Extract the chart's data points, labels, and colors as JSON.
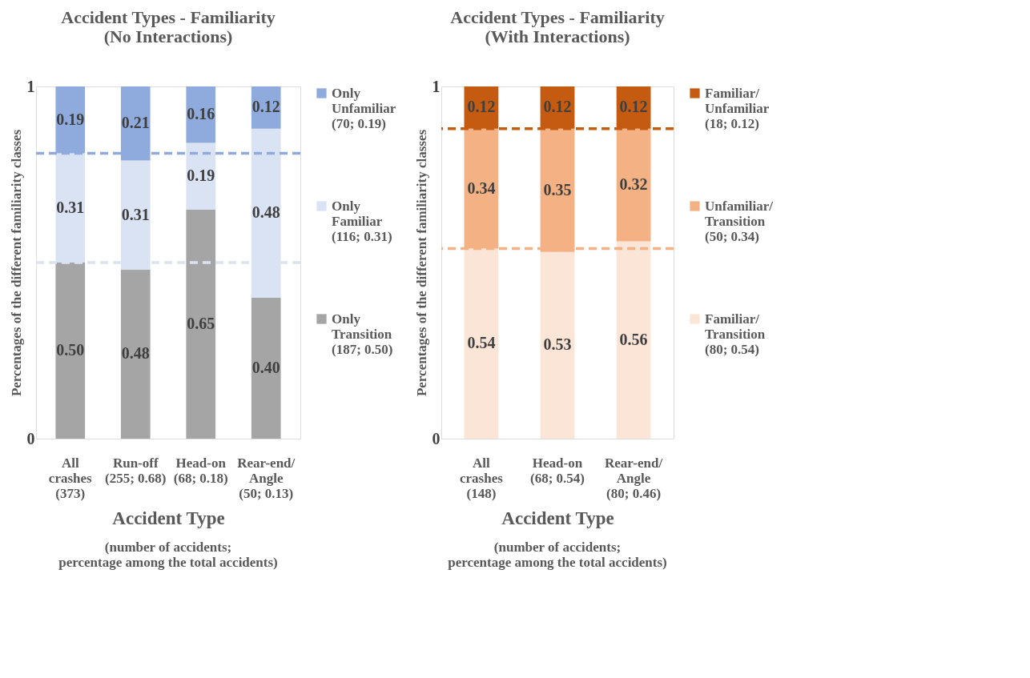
{
  "chart_data": [
    {
      "type": "bar",
      "stacked": true,
      "title": "Accident Types - Familiarity\n(No Interactions)",
      "xlabel": "Accident Type",
      "ylabel": "Percentages of the different familiarity classes",
      "annotations": [
        "(number of accidents;\npercentage among the total accidents)"
      ],
      "categories": [
        "All\ncrashes\n(373)",
        "Run-off\n(255; 0.68)",
        "Head-on\n(68; 0.18)",
        "Rear-end/\nAngle\n(50; 0.13)"
      ],
      "series": [
        {
          "name": "Only\nTransition\n(187; 0.50)",
          "color": "#a5a5a5",
          "values": [
            0.5,
            0.48,
            0.65,
            0.4
          ],
          "value_labels": [
            "0.50",
            "0.48",
            "0.65",
            "0.40"
          ]
        },
        {
          "name": "Only\nFamiliar\n(116; 0.31)",
          "color": "#dae3f3",
          "values": [
            0.31,
            0.31,
            0.19,
            0.48
          ],
          "value_labels": [
            "0.31",
            "0.31",
            "0.19",
            "0.48"
          ]
        },
        {
          "name": "Only\nUnfamiliar\n(70; 0.19)",
          "color": "#8faadc",
          "values": [
            0.19,
            0.21,
            0.16,
            0.12
          ],
          "value_labels": [
            "0.19",
            "0.21",
            "0.16",
            "0.12"
          ]
        }
      ],
      "ylim": [
        0,
        1
      ],
      "yticks": [
        0,
        1
      ],
      "grid": false,
      "legend": "right",
      "ref_lines": [
        {
          "axis": "y",
          "value": 0.81,
          "color": "#8faadc",
          "line_style": "dashed"
        },
        {
          "axis": "y",
          "value": 0.5,
          "color": "#dae3f3",
          "line_style": "dashed"
        }
      ]
    },
    {
      "type": "bar",
      "stacked": true,
      "title": "Accident Types - Familiarity\n(With Interactions)",
      "xlabel": "Accident Type",
      "ylabel": "Percentages of the different familiarity classes",
      "annotations": [
        "(number of accidents;\npercentage among the total accidents)"
      ],
      "categories": [
        "All\ncrashes\n(148)",
        "Head-on\n(68; 0.54)",
        "Rear-end/\nAngle\n(80; 0.46)"
      ],
      "series": [
        {
          "name": "Familiar/\nTransition\n(80; 0.54)",
          "color": "#fbe5d6",
          "values": [
            0.54,
            0.53,
            0.56
          ],
          "value_labels": [
            "0.54",
            "0.53",
            "0.56"
          ]
        },
        {
          "name": "Unfamiliar/\nTransition\n(50; 0.34)",
          "color": "#f4b183",
          "values": [
            0.34,
            0.35,
            0.32
          ],
          "value_labels": [
            "0.34",
            "0.35",
            "0.32"
          ]
        },
        {
          "name": "Familiar/\nUnfamiliar\n(18; 0.12)",
          "color": "#c55a11",
          "values": [
            0.12,
            0.12,
            0.12
          ],
          "value_labels": [
            "0.12",
            "0.12",
            "0.12"
          ]
        }
      ],
      "ylim": [
        0,
        1
      ],
      "yticks": [
        0,
        1
      ],
      "grid": false,
      "legend": "right",
      "ref_lines": [
        {
          "axis": "y",
          "value": 0.88,
          "color": "#c55a11",
          "line_style": "dashed"
        },
        {
          "axis": "y",
          "value": 0.54,
          "color": "#f4b183",
          "line_style": "dashed"
        }
      ]
    }
  ]
}
